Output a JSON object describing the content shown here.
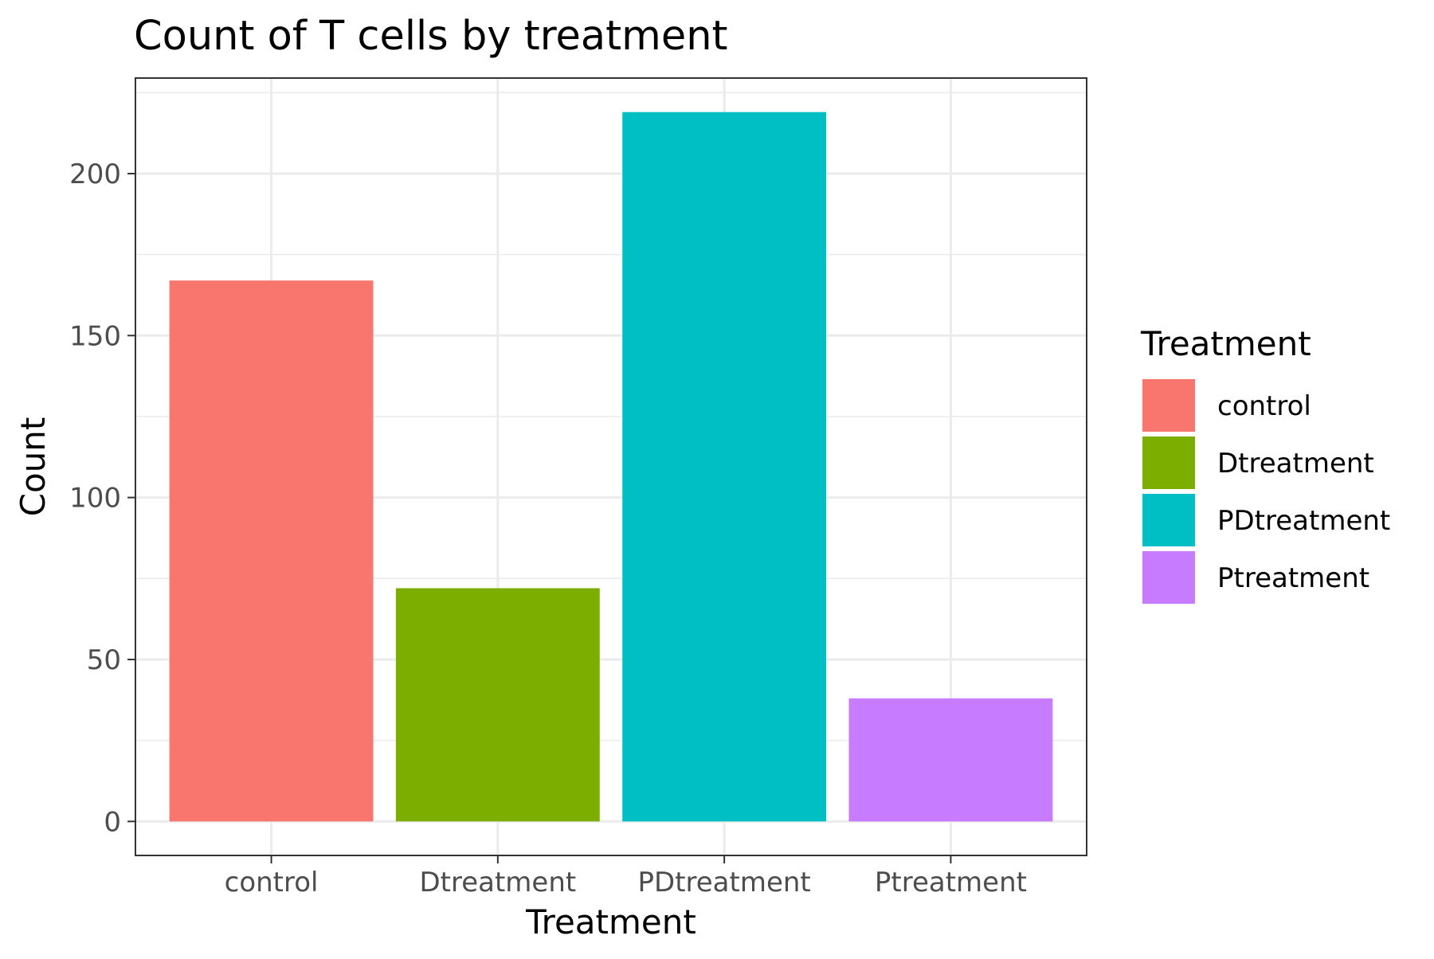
{
  "chart_data": {
    "type": "bar",
    "title": "Count of T cells by treatment",
    "xlabel": "Treatment",
    "ylabel": "Count",
    "categories": [
      "control",
      "Dtreatment",
      "PDtreatment",
      "Ptreatment"
    ],
    "values": [
      167,
      72,
      219,
      38
    ],
    "colors": [
      "#F8766D",
      "#7CAE00",
      "#00BFC4",
      "#C77CFF"
    ],
    "ylim": [
      -10.5,
      229.5
    ],
    "y_ticks": [
      0,
      50,
      100,
      150,
      200
    ],
    "y_tick_labels": [
      "0",
      "50",
      "100",
      "150",
      "200"
    ],
    "grid": true,
    "legend": {
      "title": "Treatment",
      "placement": "right",
      "entries": [
        "control",
        "Dtreatment",
        "PDtreatment",
        "Ptreatment"
      ]
    }
  }
}
